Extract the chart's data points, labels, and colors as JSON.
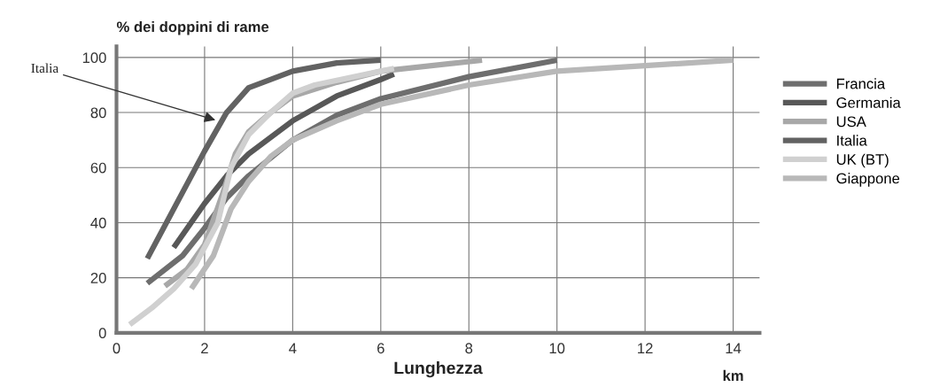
{
  "chart_data": {
    "type": "line",
    "ylabel": "% dei doppini di rame",
    "xlabel": "Lunghezza",
    "xlim": [
      0,
      14.6
    ],
    "xticks": [
      0,
      2,
      4,
      6,
      8,
      10,
      12,
      14
    ],
    "ylim": [
      0,
      104
    ],
    "yticks": [
      0,
      20,
      40,
      60,
      80,
      100
    ],
    "grid": true,
    "legend": "right",
    "marker": "none",
    "line_style": "solid",
    "annotations": [
      {
        "text": "Italia",
        "x": 2.3,
        "y": 77
      },
      "km"
    ],
    "series": [
      {
        "name": "Francia",
        "color": "#6e6e6e",
        "x": [
          0.7,
          1.5,
          2,
          2.5,
          3,
          4,
          5,
          6,
          8,
          10
        ],
        "values": [
          18,
          28,
          38,
          49,
          57,
          70,
          79,
          85,
          93,
          99
        ]
      },
      {
        "name": "Germania",
        "color": "#585858",
        "x": [
          1.3,
          2,
          2.5,
          3,
          4,
          5,
          6,
          6.3
        ],
        "values": [
          31,
          47,
          57,
          65,
          77,
          86,
          92,
          94
        ]
      },
      {
        "name": "USA",
        "color": "#a8a8a8",
        "x": [
          1.1,
          1.6,
          2,
          2.4,
          2.7,
          3,
          3.5,
          4,
          5,
          6,
          8.3
        ],
        "values": [
          17,
          23,
          32,
          50,
          65,
          73,
          80,
          86,
          91,
          95,
          99
        ]
      },
      {
        "name": "Italia",
        "color": "#626262",
        "x": [
          0.7,
          1.3,
          2,
          2.5,
          3,
          4,
          5,
          6
        ],
        "values": [
          27,
          45,
          66,
          80,
          89,
          95,
          98,
          99
        ]
      },
      {
        "name": "UK (BT)",
        "color": "#d0d0d0",
        "x": [
          0.3,
          0.8,
          1.3,
          1.8,
          2.3,
          2.6,
          3,
          3.5,
          4,
          4.5,
          6,
          6.3
        ],
        "values": [
          3,
          9,
          16,
          25,
          40,
          60,
          72,
          80,
          87,
          90,
          95,
          96
        ]
      },
      {
        "name": "Giappone",
        "color": "#b8b8b8",
        "x": [
          1.7,
          2.2,
          2.6,
          3,
          3.5,
          4,
          5,
          6,
          8,
          10,
          12,
          14
        ],
        "values": [
          16,
          28,
          45,
          55,
          64,
          70,
          77,
          83,
          90,
          95,
          97,
          99
        ]
      }
    ]
  }
}
